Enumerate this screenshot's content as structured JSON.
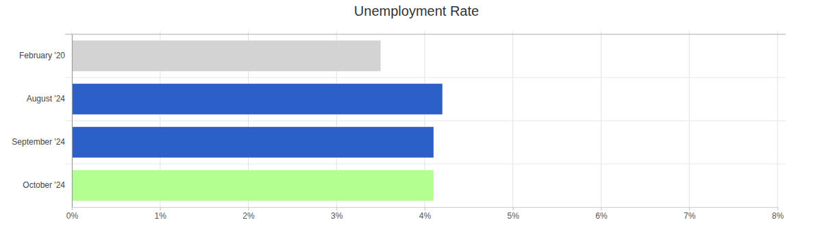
{
  "chart_data": {
    "type": "bar",
    "orientation": "horizontal",
    "title": "Unemployment Rate",
    "categories": [
      "February '20",
      "August '24",
      "September '24",
      "October '24"
    ],
    "values": [
      3.5,
      4.2,
      4.1,
      4.1
    ],
    "colors": [
      "#d3d3d3",
      "#2a60c8",
      "#2a60c8",
      "#b3ff8f"
    ],
    "xlim": [
      0,
      8
    ],
    "xticks": [
      {
        "value": 0,
        "label": "0%"
      },
      {
        "value": 1,
        "label": "1%"
      },
      {
        "value": 2,
        "label": "2%"
      },
      {
        "value": 3,
        "label": "3%"
      },
      {
        "value": 4,
        "label": "4%"
      },
      {
        "value": 5,
        "label": "5%"
      },
      {
        "value": 6,
        "label": "6%"
      },
      {
        "value": 7,
        "label": "7%"
      },
      {
        "value": 8,
        "label": "8%"
      }
    ],
    "grid": true
  }
}
